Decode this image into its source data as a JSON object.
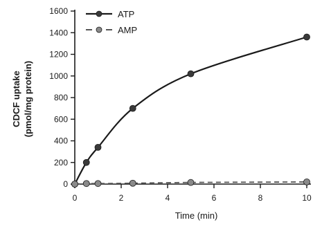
{
  "chart_data": {
    "type": "line",
    "xlabel": "Time (min)",
    "ylabel_line1": "CDCF uptake",
    "ylabel_line2": "(pmol/mg protein)",
    "xlim": [
      0,
      10
    ],
    "ylim": [
      0,
      1600
    ],
    "xticks": [
      0,
      2,
      4,
      6,
      8,
      10
    ],
    "yticks": [
      0,
      200,
      400,
      600,
      800,
      1000,
      1200,
      1400,
      1600
    ],
    "grid": false,
    "legend_position": "top-left",
    "series": [
      {
        "name": "ATP",
        "line_style": "solid",
        "marker_color": "#3a3a3a",
        "x": [
          0,
          0.5,
          1,
          2.5,
          5,
          10
        ],
        "y": [
          0,
          200,
          340,
          700,
          1020,
          1360
        ]
      },
      {
        "name": "AMP",
        "line_style": "dashed",
        "marker_color": "#8a8a8a",
        "x": [
          0,
          0.5,
          1,
          2.5,
          5,
          10
        ],
        "y": [
          0,
          5,
          5,
          8,
          15,
          20
        ]
      }
    ]
  }
}
